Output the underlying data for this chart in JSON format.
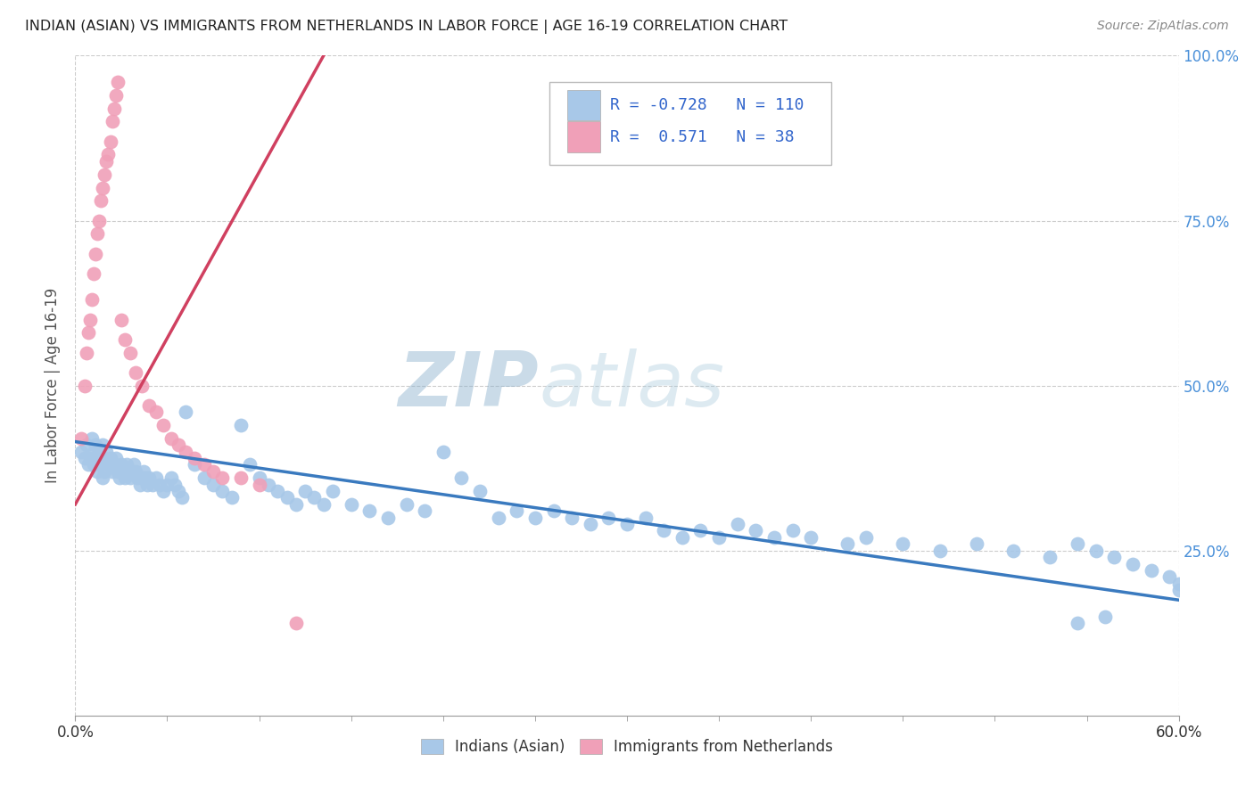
{
  "title": "INDIAN (ASIAN) VS IMMIGRANTS FROM NETHERLANDS IN LABOR FORCE | AGE 16-19 CORRELATION CHART",
  "source": "Source: ZipAtlas.com",
  "ylabel": "In Labor Force | Age 16-19",
  "xlim": [
    0.0,
    0.6
  ],
  "ylim": [
    0.0,
    1.0
  ],
  "xtick_values": [
    0.0,
    0.6
  ],
  "xtick_labels": [
    "0.0%",
    "60.0%"
  ],
  "ytick_values": [
    0.25,
    0.5,
    0.75,
    1.0
  ],
  "ytick_labels": [
    "25.0%",
    "50.0%",
    "75.0%",
    "100.0%"
  ],
  "blue_color": "#a8c8e8",
  "blue_line_color": "#3a7abf",
  "pink_color": "#f0a0b8",
  "pink_line_color": "#d04060",
  "legend_blue_label": "Indians (Asian)",
  "legend_pink_label": "Immigrants from Netherlands",
  "R_blue": -0.728,
  "N_blue": 110,
  "R_pink": 0.571,
  "N_pink": 38,
  "watermark_zip": "ZIP",
  "watermark_atlas": "atlas",
  "blue_line_x0": 0.0,
  "blue_line_y0": 0.415,
  "blue_line_x1": 0.6,
  "blue_line_y1": 0.175,
  "pink_line_x0": 0.0,
  "pink_line_y0": 0.32,
  "pink_line_x1": 0.135,
  "pink_line_y1": 1.0,
  "blue_points_x": [
    0.003,
    0.005,
    0.006,
    0.007,
    0.008,
    0.009,
    0.01,
    0.01,
    0.011,
    0.012,
    0.012,
    0.013,
    0.014,
    0.015,
    0.015,
    0.016,
    0.016,
    0.017,
    0.018,
    0.019,
    0.02,
    0.021,
    0.022,
    0.023,
    0.024,
    0.025,
    0.026,
    0.027,
    0.028,
    0.029,
    0.03,
    0.031,
    0.032,
    0.033,
    0.034,
    0.035,
    0.036,
    0.037,
    0.038,
    0.039,
    0.04,
    0.042,
    0.044,
    0.046,
    0.048,
    0.05,
    0.052,
    0.054,
    0.056,
    0.058,
    0.06,
    0.065,
    0.07,
    0.075,
    0.08,
    0.085,
    0.09,
    0.095,
    0.1,
    0.105,
    0.11,
    0.115,
    0.12,
    0.125,
    0.13,
    0.135,
    0.14,
    0.15,
    0.16,
    0.17,
    0.18,
    0.19,
    0.2,
    0.21,
    0.22,
    0.23,
    0.24,
    0.25,
    0.26,
    0.27,
    0.28,
    0.29,
    0.3,
    0.31,
    0.32,
    0.33,
    0.34,
    0.35,
    0.36,
    0.37,
    0.38,
    0.39,
    0.4,
    0.42,
    0.43,
    0.45,
    0.47,
    0.49,
    0.51,
    0.53,
    0.545,
    0.555,
    0.565,
    0.575,
    0.585,
    0.595,
    0.6,
    0.6,
    0.545,
    0.56
  ],
  "blue_points_y": [
    0.4,
    0.39,
    0.41,
    0.38,
    0.39,
    0.42,
    0.4,
    0.38,
    0.41,
    0.39,
    0.37,
    0.4,
    0.38,
    0.41,
    0.36,
    0.39,
    0.37,
    0.4,
    0.38,
    0.39,
    0.37,
    0.38,
    0.39,
    0.37,
    0.36,
    0.38,
    0.37,
    0.36,
    0.38,
    0.37,
    0.36,
    0.37,
    0.38,
    0.37,
    0.36,
    0.35,
    0.36,
    0.37,
    0.36,
    0.35,
    0.36,
    0.35,
    0.36,
    0.35,
    0.34,
    0.35,
    0.36,
    0.35,
    0.34,
    0.33,
    0.46,
    0.38,
    0.36,
    0.35,
    0.34,
    0.33,
    0.44,
    0.38,
    0.36,
    0.35,
    0.34,
    0.33,
    0.32,
    0.34,
    0.33,
    0.32,
    0.34,
    0.32,
    0.31,
    0.3,
    0.32,
    0.31,
    0.4,
    0.36,
    0.34,
    0.3,
    0.31,
    0.3,
    0.31,
    0.3,
    0.29,
    0.3,
    0.29,
    0.3,
    0.28,
    0.27,
    0.28,
    0.27,
    0.29,
    0.28,
    0.27,
    0.28,
    0.27,
    0.26,
    0.27,
    0.26,
    0.25,
    0.26,
    0.25,
    0.24,
    0.26,
    0.25,
    0.24,
    0.23,
    0.22,
    0.21,
    0.2,
    0.19,
    0.14,
    0.15
  ],
  "pink_points_x": [
    0.003,
    0.005,
    0.006,
    0.007,
    0.008,
    0.009,
    0.01,
    0.011,
    0.012,
    0.013,
    0.014,
    0.015,
    0.016,
    0.017,
    0.018,
    0.019,
    0.02,
    0.021,
    0.022,
    0.023,
    0.025,
    0.027,
    0.03,
    0.033,
    0.036,
    0.04,
    0.044,
    0.048,
    0.052,
    0.056,
    0.06,
    0.065,
    0.07,
    0.075,
    0.08,
    0.09,
    0.1,
    0.12
  ],
  "pink_points_y": [
    0.42,
    0.5,
    0.55,
    0.58,
    0.6,
    0.63,
    0.67,
    0.7,
    0.73,
    0.75,
    0.78,
    0.8,
    0.82,
    0.84,
    0.85,
    0.87,
    0.9,
    0.92,
    0.94,
    0.96,
    0.6,
    0.57,
    0.55,
    0.52,
    0.5,
    0.47,
    0.46,
    0.44,
    0.42,
    0.41,
    0.4,
    0.39,
    0.38,
    0.37,
    0.36,
    0.36,
    0.35,
    0.14
  ]
}
